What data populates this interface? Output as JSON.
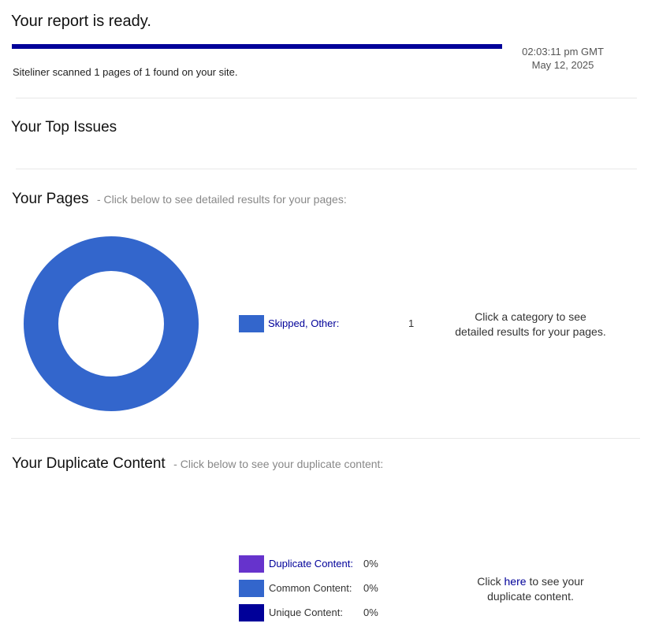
{
  "header": {
    "title": "Your report is ready.",
    "progress_percent": 100,
    "progress_color": "#000099",
    "scan_summary": "Siteliner scanned 1 pages of 1 found on your site.",
    "time": "02:03:11 pm GMT",
    "date": "May 12, 2025"
  },
  "top_issues": {
    "title": "Your Top Issues"
  },
  "pages": {
    "title": "Your Pages",
    "subtitle": "-  Click below to see detailed results for your pages:",
    "legend": [
      {
        "label": "Skipped, Other:",
        "count": "1",
        "color": "#3366cc"
      }
    ],
    "hint_line1": "Click a category to see",
    "hint_line2": "detailed results for your pages."
  },
  "duplicate": {
    "title": "Your Duplicate Content",
    "subtitle": "-  Click below to see your duplicate content:",
    "legend": [
      {
        "label": "Duplicate Content:",
        "value": "0%",
        "color": "#6633cc",
        "link": true
      },
      {
        "label": "Common Content:",
        "value": "0%",
        "color": "#3366cc",
        "link": false
      },
      {
        "label": "Unique Content:",
        "value": "0%",
        "color": "#000099",
        "link": false
      }
    ],
    "hint_pre": "Click",
    "hint_link": "here",
    "hint_post": "to see your",
    "hint_line2": "duplicate content."
  },
  "chart_data": {
    "type": "pie",
    "categories": [
      "Skipped, Other"
    ],
    "values": [
      1
    ],
    "colors": [
      "#3366cc"
    ],
    "donut": true
  }
}
